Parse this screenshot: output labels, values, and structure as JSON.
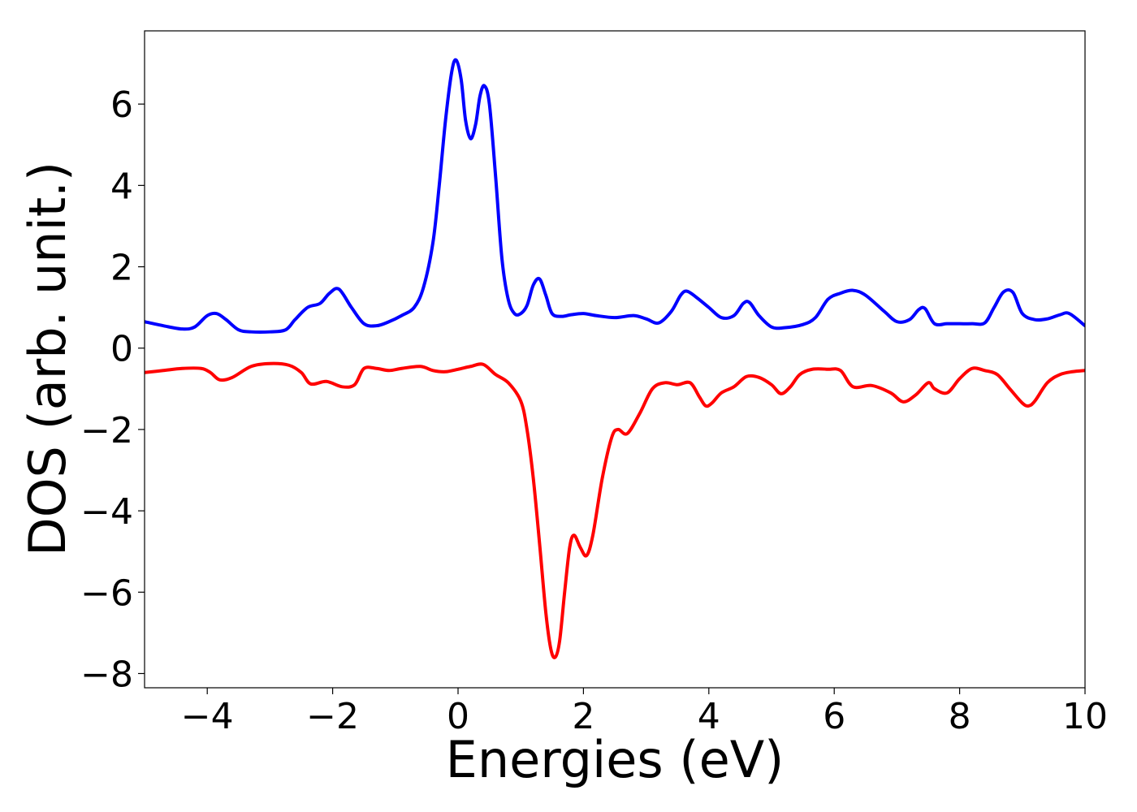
{
  "chart_data": {
    "type": "line",
    "title": "",
    "xlabel": "Energies (eV)",
    "ylabel": "DOS (arb. unit.)",
    "xlim": [
      -5,
      10
    ],
    "ylim": [
      -8.35,
      7.8
    ],
    "xticks": [
      -4,
      -2,
      0,
      2,
      4,
      6,
      8,
      10
    ],
    "xtick_labels": [
      "−4",
      "−2",
      "0",
      "2",
      "4",
      "6",
      "8",
      "10"
    ],
    "yticks": [
      6,
      4,
      2,
      0,
      -2,
      -4,
      -6,
      -8
    ],
    "ytick_labels": [
      "6",
      "4",
      "2",
      "0",
      "−2",
      "−4",
      "−6",
      "−8"
    ],
    "grid": false,
    "legend": "none",
    "series": [
      {
        "color": "#0000ff",
        "x": [
          -5.0,
          -4.7,
          -4.4,
          -4.2,
          -4.0,
          -3.85,
          -3.7,
          -3.5,
          -3.3,
          -3.0,
          -2.75,
          -2.6,
          -2.4,
          -2.2,
          -2.05,
          -1.9,
          -1.7,
          -1.5,
          -1.3,
          -1.1,
          -0.9,
          -0.7,
          -0.55,
          -0.4,
          -0.3,
          -0.2,
          -0.1,
          -0.03,
          0.05,
          0.12,
          0.2,
          0.28,
          0.35,
          0.42,
          0.5,
          0.6,
          0.7,
          0.8,
          0.9,
          1.0,
          1.1,
          1.2,
          1.3,
          1.4,
          1.5,
          1.65,
          1.8,
          2.0,
          2.2,
          2.5,
          2.8,
          3.0,
          3.2,
          3.4,
          3.55,
          3.65,
          3.8,
          4.0,
          4.2,
          4.4,
          4.55,
          4.65,
          4.8,
          5.0,
          5.2,
          5.5,
          5.7,
          5.9,
          6.1,
          6.3,
          6.5,
          6.8,
          7.0,
          7.2,
          7.35,
          7.45,
          7.6,
          7.8,
          8.0,
          8.2,
          8.4,
          8.55,
          8.7,
          8.85,
          9.0,
          9.2,
          9.4,
          9.6,
          9.75,
          10.0
        ],
        "y": [
          0.65,
          0.55,
          0.47,
          0.52,
          0.8,
          0.85,
          0.7,
          0.45,
          0.4,
          0.4,
          0.45,
          0.7,
          1.0,
          1.1,
          1.35,
          1.45,
          1.0,
          0.6,
          0.55,
          0.65,
          0.8,
          1.0,
          1.5,
          2.6,
          4.0,
          5.6,
          6.8,
          7.08,
          6.6,
          5.6,
          5.15,
          5.5,
          6.2,
          6.45,
          6.0,
          4.2,
          2.2,
          1.2,
          0.85,
          0.85,
          1.05,
          1.55,
          1.7,
          1.3,
          0.85,
          0.78,
          0.82,
          0.85,
          0.8,
          0.75,
          0.8,
          0.72,
          0.62,
          0.9,
          1.3,
          1.4,
          1.25,
          1.0,
          0.75,
          0.8,
          1.1,
          1.12,
          0.8,
          0.52,
          0.5,
          0.58,
          0.75,
          1.2,
          1.35,
          1.42,
          1.3,
          0.9,
          0.65,
          0.7,
          0.95,
          0.97,
          0.6,
          0.6,
          0.6,
          0.6,
          0.62,
          1.0,
          1.38,
          1.37,
          0.85,
          0.7,
          0.72,
          0.82,
          0.85,
          0.55
        ]
      },
      {
        "color": "#ff0000",
        "x": [
          -5.0,
          -4.7,
          -4.4,
          -4.1,
          -3.95,
          -3.8,
          -3.6,
          -3.3,
          -3.0,
          -2.7,
          -2.5,
          -2.35,
          -2.1,
          -1.85,
          -1.65,
          -1.5,
          -1.3,
          -1.1,
          -0.9,
          -0.6,
          -0.4,
          -0.2,
          0.0,
          0.2,
          0.4,
          0.6,
          0.8,
          1.0,
          1.1,
          1.2,
          1.3,
          1.4,
          1.48,
          1.55,
          1.62,
          1.7,
          1.78,
          1.85,
          1.95,
          2.05,
          2.15,
          2.3,
          2.45,
          2.55,
          2.7,
          2.9,
          3.1,
          3.3,
          3.5,
          3.7,
          3.85,
          3.95,
          4.05,
          4.2,
          4.4,
          4.6,
          4.8,
          5.0,
          5.15,
          5.3,
          5.45,
          5.65,
          5.9,
          6.1,
          6.3,
          6.6,
          6.9,
          7.1,
          7.3,
          7.5,
          7.6,
          7.8,
          8.0,
          8.2,
          8.4,
          8.6,
          8.8,
          9.0,
          9.1,
          9.2,
          9.4,
          9.6,
          9.8,
          10.0
        ],
        "y": [
          -0.6,
          -0.55,
          -0.5,
          -0.5,
          -0.6,
          -0.78,
          -0.72,
          -0.45,
          -0.38,
          -0.42,
          -0.6,
          -0.88,
          -0.82,
          -0.95,
          -0.9,
          -0.5,
          -0.5,
          -0.55,
          -0.5,
          -0.45,
          -0.55,
          -0.58,
          -0.52,
          -0.45,
          -0.4,
          -0.65,
          -0.85,
          -1.3,
          -2.0,
          -3.2,
          -4.8,
          -6.5,
          -7.4,
          -7.6,
          -7.2,
          -6.0,
          -4.9,
          -4.6,
          -4.9,
          -5.1,
          -4.6,
          -3.2,
          -2.2,
          -2.0,
          -2.1,
          -1.6,
          -1.0,
          -0.85,
          -0.9,
          -0.85,
          -1.2,
          -1.42,
          -1.35,
          -1.1,
          -0.95,
          -0.7,
          -0.72,
          -0.9,
          -1.12,
          -0.95,
          -0.65,
          -0.52,
          -0.52,
          -0.55,
          -0.95,
          -0.92,
          -1.1,
          -1.32,
          -1.15,
          -0.85,
          -1.0,
          -1.1,
          -0.75,
          -0.5,
          -0.55,
          -0.65,
          -1.0,
          -1.35,
          -1.42,
          -1.3,
          -0.85,
          -0.65,
          -0.58,
          -0.55
        ]
      }
    ]
  }
}
